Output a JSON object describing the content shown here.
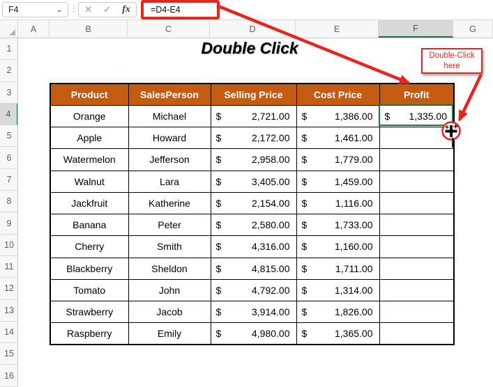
{
  "formula_bar": {
    "name_box_value": "F4",
    "dropdown_icon": "⌄",
    "drag_handle_icon": "⋮",
    "cancel_icon": "✕",
    "enter_icon": "✓",
    "fx_label": "fx",
    "formula": "=D4-E4"
  },
  "grid": {
    "column_headers": [
      "A",
      "B",
      "C",
      "D",
      "E",
      "F",
      "G"
    ],
    "row_headers": [
      "1",
      "2",
      "3",
      "4",
      "5",
      "6",
      "7",
      "8",
      "9",
      "10",
      "11",
      "12",
      "13",
      "14",
      "15",
      "16"
    ],
    "selected_column": "F",
    "selected_row": "4",
    "selected_cell": "F4"
  },
  "sheet_title": "Double Click",
  "annotation": {
    "callout_line1": "Double-Click",
    "callout_line2": "here"
  },
  "table": {
    "currency": "$",
    "headers": [
      "Product",
      "SalesPerson",
      "Selling Price",
      "Cost Price",
      "Profit"
    ],
    "rows": [
      {
        "product": "Orange",
        "salesperson": "Michael",
        "selling_price": "2,721.00",
        "cost_price": "1,386.00",
        "profit": "1,335.00"
      },
      {
        "product": "Apple",
        "salesperson": "Howard",
        "selling_price": "2,172.00",
        "cost_price": "1,461.00",
        "profit": ""
      },
      {
        "product": "Watermelon",
        "salesperson": "Jefferson",
        "selling_price": "2,958.00",
        "cost_price": "1,779.00",
        "profit": ""
      },
      {
        "product": "Walnut",
        "salesperson": "Lara",
        "selling_price": "3,405.00",
        "cost_price": "1,459.00",
        "profit": ""
      },
      {
        "product": "Jackfruit",
        "salesperson": "Katherine",
        "selling_price": "2,154.00",
        "cost_price": "1,116.00",
        "profit": ""
      },
      {
        "product": "Banana",
        "salesperson": "Peter",
        "selling_price": "2,580.00",
        "cost_price": "1,733.00",
        "profit": ""
      },
      {
        "product": "Cherry",
        "salesperson": "Smith",
        "selling_price": "4,316.00",
        "cost_price": "1,160.00",
        "profit": ""
      },
      {
        "product": "Blackberry",
        "salesperson": "Sheldon",
        "selling_price": "4,815.00",
        "cost_price": "1,711.00",
        "profit": ""
      },
      {
        "product": "Tomato",
        "salesperson": "John",
        "selling_price": "4,792.00",
        "cost_price": "1,314.00",
        "profit": ""
      },
      {
        "product": "Strawberry",
        "salesperson": "Jacob",
        "selling_price": "3,914.00",
        "cost_price": "1,826.00",
        "profit": ""
      },
      {
        "product": "Raspberry",
        "salesperson": "Emily",
        "selling_price": "4,980.00",
        "cost_price": "1,365.00",
        "profit": ""
      }
    ]
  },
  "colors": {
    "table_header_bg": "#C55A11",
    "selection_green": "#217346",
    "annotation_red": "#E8251D"
  }
}
